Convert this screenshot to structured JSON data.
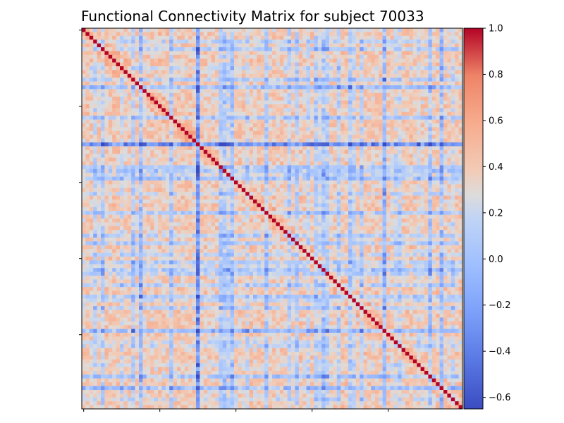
{
  "chart_data": {
    "type": "heatmap",
    "title": "Functional Connectivity Matrix for subject 70033",
    "n_regions": 100,
    "colormap": "coolwarm",
    "vmin": -0.65,
    "vmax": 1.0,
    "colorbar_ticks": [
      1.0,
      0.8,
      0.6,
      0.4,
      0.2,
      0.0,
      -0.2,
      -0.4,
      -0.6
    ],
    "colorbar_tick_labels": [
      "1.0",
      "0.8",
      "0.6",
      "0.4",
      "0.2",
      "0.0",
      "−0.2",
      "−0.4",
      "−0.6"
    ],
    "x_ticks": [
      0,
      20,
      40,
      60,
      80
    ],
    "y_ticks": [
      0,
      20,
      40,
      60,
      80
    ],
    "x_tick_labels": [
      "",
      "",
      "",
      "",
      ""
    ],
    "y_tick_labels": [
      "",
      "",
      "",
      "",
      ""
    ],
    "diagonal_value": 1.0,
    "background_correlation": 0.45,
    "low_connectivity_regions": [
      {
        "index": 15,
        "strength": 0.45
      },
      {
        "index": 30,
        "strength": 0.85
      },
      {
        "index": 37,
        "strength": 0.35
      },
      {
        "index": 39,
        "strength": 0.4
      },
      {
        "index": 54,
        "strength": 0.3
      },
      {
        "index": 56,
        "strength": 0.3
      },
      {
        "index": 63,
        "strength": 0.4
      },
      {
        "index": 79,
        "strength": 0.5
      },
      {
        "index": 91,
        "strength": 0.4
      },
      {
        "index": 94,
        "strength": 0.45
      }
    ]
  }
}
